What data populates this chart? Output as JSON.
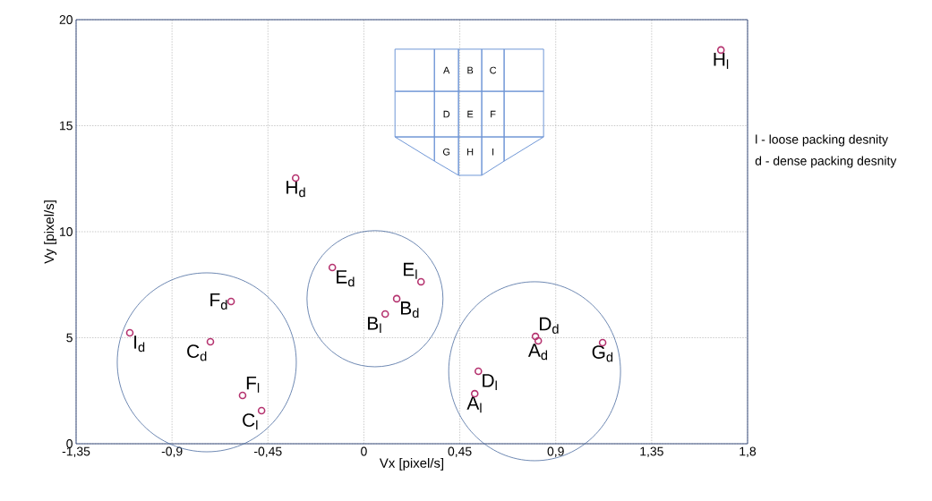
{
  "chart_data": {
    "type": "scatter",
    "xlabel": "Vx [pixel/s]",
    "ylabel": "Vy [pixel/s]",
    "xlim": [
      -1.35,
      1.8
    ],
    "ylim": [
      0,
      20
    ],
    "xticks": [
      {
        "value": -1.35,
        "label": "-1,35"
      },
      {
        "value": -0.9,
        "label": "-0,9"
      },
      {
        "value": -0.45,
        "label": "-0,45"
      },
      0,
      {
        "value": 0.45,
        "label": "0,45"
      },
      {
        "value": 0.9,
        "label": "0,9"
      },
      {
        "value": 1.35,
        "label": "1,35"
      },
      {
        "value": 1.8,
        "label": "1,8"
      }
    ],
    "yticks": [
      0,
      5,
      10,
      15,
      20
    ],
    "grid": true,
    "marker": "circle",
    "series": [
      {
        "color": "#b5336f",
        "x": [
          1.675,
          -0.32,
          -0.148,
          0.268,
          0.154,
          0.1,
          -0.623,
          -1.098,
          -0.72,
          -0.569,
          -0.48,
          0.805,
          0.818,
          1.12,
          0.537,
          0.52
        ],
        "values": [
          18.57,
          12.53,
          8.31,
          7.64,
          6.84,
          6.12,
          6.71,
          5.23,
          4.81,
          2.28,
          1.56,
          5.06,
          4.85,
          4.77,
          3.42,
          2.36
        ]
      }
    ],
    "annotations": [
      {
        "text": "H$_{l}$",
        "x": 1.675,
        "y": 18.57
      },
      {
        "text": "H$_{d}$",
        "x": -0.32,
        "y": 12.53
      },
      {
        "text": "E$_{d}$",
        "x": -0.148,
        "y": 8.31
      },
      {
        "text": "E$_{l}$",
        "x": 0.268,
        "y": 7.64
      },
      {
        "text": "B$_{d}$",
        "x": 0.154,
        "y": 6.84
      },
      {
        "text": "B$_{l}$",
        "x": 0.1,
        "y": 6.12
      },
      {
        "text": "F$_{d}$",
        "x": -0.623,
        "y": 6.71
      },
      {
        "text": "I$_{d}$",
        "x": -1.098,
        "y": 5.23
      },
      {
        "text": "C$_{d}$",
        "x": -0.72,
        "y": 4.81
      },
      {
        "text": "F$_{l}$",
        "x": -0.569,
        "y": 2.28
      },
      {
        "text": "C$_{l}$",
        "x": -0.48,
        "y": 1.56
      },
      {
        "text": "D$_{d}$",
        "x": 0.805,
        "y": 5.06
      },
      {
        "text": "A$_{d}$",
        "x": 0.818,
        "y": 4.85
      },
      {
        "text": "G$_{d}$",
        "x": 1.12,
        "y": 4.77
      },
      {
        "text": "D$_{l}$",
        "x": 0.537,
        "y": 3.42
      },
      {
        "text": "A$_{l}$",
        "x": 0.52,
        "y": 2.36
      },
      "l - loose packing desnity",
      "d - dense packing desnity",
      "A",
      "B",
      "C",
      "D",
      "E",
      "F",
      "G",
      "H",
      "I"
    ]
  }
}
